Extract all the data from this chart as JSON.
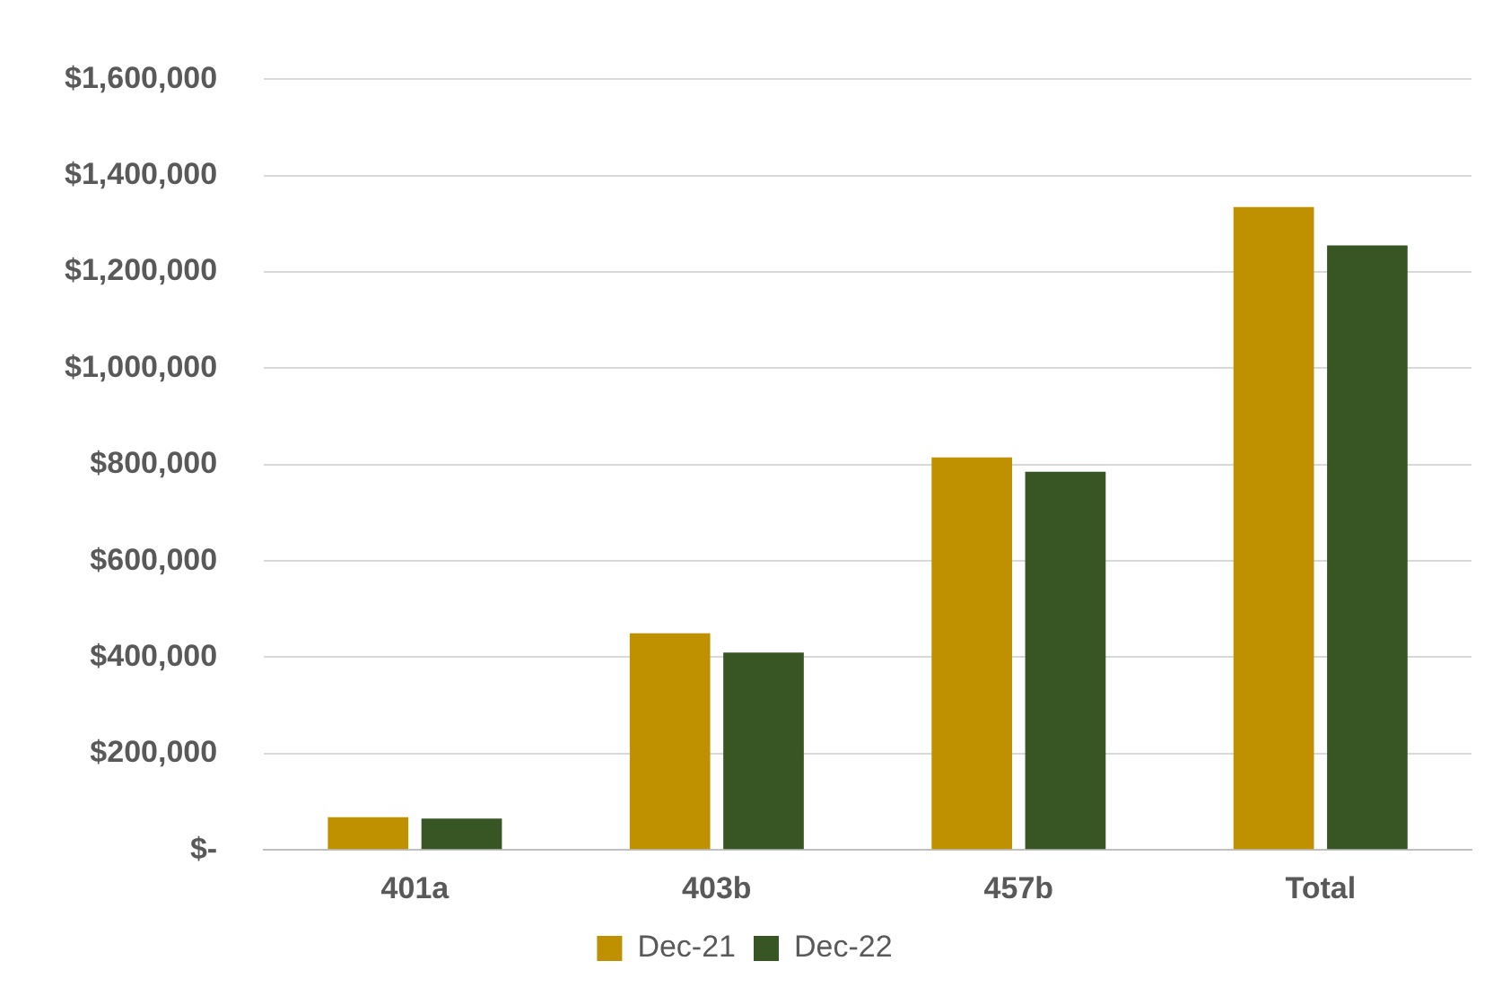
{
  "chart_data": {
    "type": "bar",
    "categories": [
      "401a",
      "403b",
      "457b",
      "Total"
    ],
    "series": [
      {
        "name": "Dec-21",
        "color": "#bf9000",
        "values": [
          68000,
          450000,
          815000,
          1335000
        ]
      },
      {
        "name": "Dec-22",
        "color": "#375623",
        "values": [
          65000,
          410000,
          785000,
          1255000
        ]
      }
    ],
    "ylim": [
      0,
      1600000
    ],
    "yticks": [
      {
        "value": 0,
        "label": "$-"
      },
      {
        "value": 200000,
        "label": "$200,000"
      },
      {
        "value": 400000,
        "label": "$400,000"
      },
      {
        "value": 600000,
        "label": "$600,000"
      },
      {
        "value": 800000,
        "label": "$800,000"
      },
      {
        "value": 1000000,
        "label": "$1,000,000"
      },
      {
        "value": 1200000,
        "label": "$1,200,000"
      },
      {
        "value": 1400000,
        "label": "$1,400,000"
      },
      {
        "value": 1600000,
        "label": "$1,600,000"
      }
    ],
    "grid": "y",
    "legend": "bottom"
  }
}
